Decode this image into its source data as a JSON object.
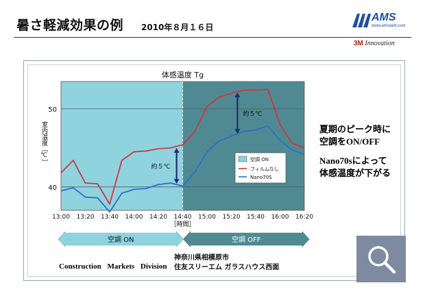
{
  "header": {
    "title": "暑さ軽減効果の例",
    "date": "2010年８月１６日"
  },
  "logos": {
    "ams": "AMS",
    "ams_url": "www.amsweb.com",
    "three_m": "3M",
    "innovation": "Innovation"
  },
  "chart_data": {
    "type": "line",
    "title": "体感温度 Tg",
    "ylabel": "室内温度［℃］",
    "xlabel": "［時間］",
    "x_ticks": [
      "13:00",
      "13:20",
      "13:40",
      "14:00",
      "14:20",
      "14:40",
      "15:00",
      "15:20",
      "15:40",
      "16:00",
      "16:20"
    ],
    "y_ticks": [
      40,
      50
    ],
    "ylim": [
      37,
      53.5
    ],
    "x": [
      "13:00",
      "13:10",
      "13:20",
      "13:30",
      "13:40",
      "13:50",
      "14:00",
      "14:10",
      "14:20",
      "14:30",
      "14:40",
      "14:50",
      "15:00",
      "15:10",
      "15:20",
      "15:30",
      "15:40",
      "15:50",
      "16:00",
      "16:10",
      "16:20"
    ],
    "series": [
      {
        "name": "フィルムなし",
        "color": "#d0343f",
        "values": [
          41.8,
          43.4,
          40.5,
          40.4,
          37.8,
          43.4,
          44.5,
          44.6,
          44.9,
          45.0,
          45.4,
          47.1,
          50.3,
          51.5,
          52.0,
          52.4,
          52.4,
          52.5,
          48.0,
          45.6,
          45.0
        ]
      },
      {
        "name": "Nano70S",
        "color": "#2a6fc9",
        "values": [
          39.5,
          39.9,
          38.7,
          38.6,
          36.8,
          39.2,
          39.7,
          39.8,
          40.3,
          40.5,
          40.1,
          41.9,
          44.5,
          45.9,
          46.5,
          47.1,
          47.3,
          47.8,
          46.0,
          44.7,
          44.2
        ]
      }
    ],
    "legend": {
      "position": "center-right",
      "items": [
        "空調 ON",
        "フィルムなし",
        "Nano70S"
      ]
    },
    "regions": [
      {
        "label": "空調 ON",
        "from": "13:00",
        "to": "14:40",
        "color": "#8fd3df"
      },
      {
        "label": "空調 OFF",
        "from": "14:40",
        "to": "16:20",
        "color": "#4f8a92"
      }
    ],
    "annotations": [
      "約５℃",
      "約５℃"
    ],
    "grid": true
  },
  "side_notes": {
    "line1": "夏期のピーク時に",
    "line2": "空調をON/OFF",
    "line3": "Nano70sによって",
    "line4": "体感温度が下がる"
  },
  "footer": {
    "division": "Construction Markets Division",
    "location_line1": "神奈川県相模原市",
    "location_line2": "住友スリーエム ガラスハウス西面"
  },
  "colors": {
    "region_on": "#8fd3df",
    "region_off": "#4f8a92",
    "arrow": "#1c2f6b",
    "search_tile": "#7d8aa0"
  },
  "icons": {
    "search": "search-icon"
  }
}
